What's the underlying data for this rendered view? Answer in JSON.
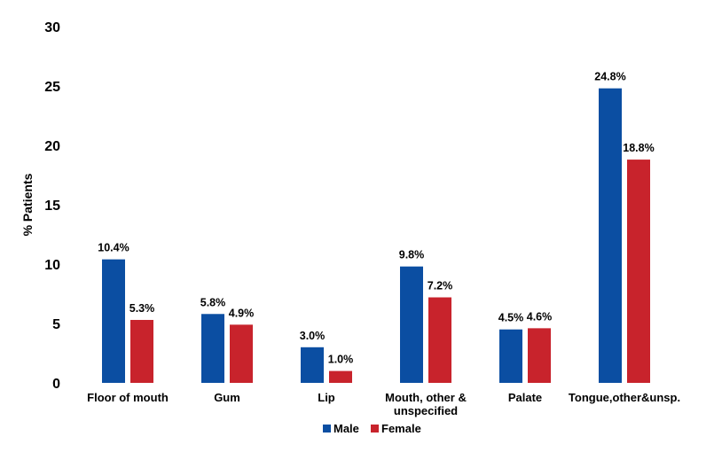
{
  "chart_data": {
    "type": "bar",
    "title": "",
    "xlabel": "",
    "ylabel": "% Patients",
    "ylim": [
      0,
      30
    ],
    "yticks": [
      "0",
      "5",
      "10",
      "15",
      "20",
      "25",
      "30"
    ],
    "grid": false,
    "legend_position": "bottom",
    "categories": [
      [
        "Floor of mouth"
      ],
      [
        "Gum"
      ],
      [
        "Lip"
      ],
      [
        "Mouth, other &",
        "unspecified"
      ],
      [
        "Palate"
      ],
      [
        "Tongue,other&unsp."
      ]
    ],
    "series": [
      {
        "name": "Male",
        "color": "#0b4ea2",
        "values": [
          10.4,
          5.8,
          3.0,
          9.8,
          4.5,
          24.8
        ],
        "labels": [
          "10.4%",
          "5.8%",
          "3.0%",
          "9.8%",
          "4.5%",
          "24.8%"
        ]
      },
      {
        "name": "Female",
        "color": "#c8232c",
        "values": [
          5.3,
          4.9,
          1.0,
          7.2,
          4.6,
          18.8
        ],
        "labels": [
          "5.3%",
          "4.9%",
          "1.0%",
          "7.2%",
          "4.6%",
          "18.8%"
        ]
      }
    ]
  }
}
